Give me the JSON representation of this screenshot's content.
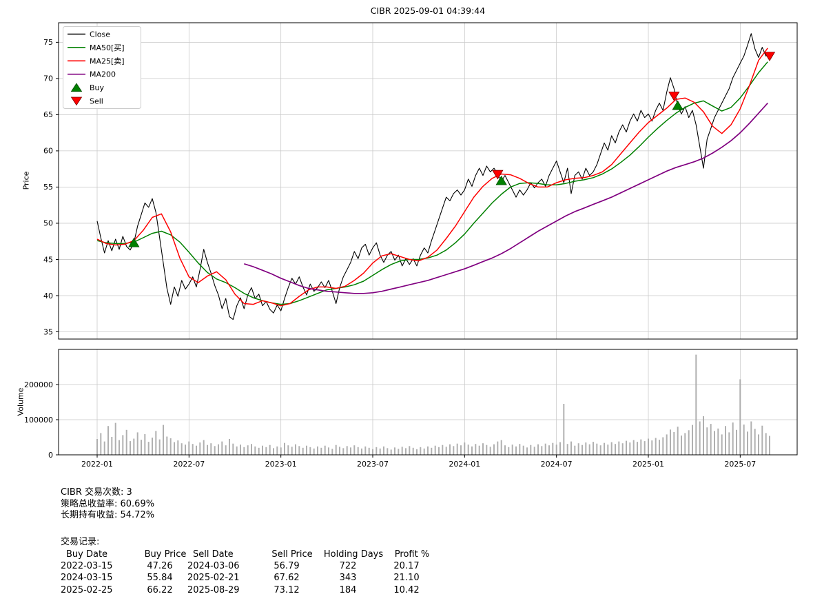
{
  "chart_data": {
    "type": "line",
    "title": "CIBR 2025-09-01 04:39:44",
    "xlim": [
      2021.79,
      2025.81
    ],
    "xticks": [
      {
        "value": 2022.0,
        "label": "2022-01"
      },
      {
        "value": 2022.5,
        "label": "2022-07"
      },
      {
        "value": 2023.0,
        "label": "2023-01"
      },
      {
        "value": 2023.5,
        "label": "2023-07"
      },
      {
        "value": 2024.0,
        "label": "2024-01"
      },
      {
        "value": 2024.5,
        "label": "2024-07"
      },
      {
        "value": 2025.0,
        "label": "2025-01"
      },
      {
        "value": 2025.5,
        "label": "2025-07"
      }
    ],
    "price_panel": {
      "ylabel": "Price",
      "ylim": [
        34,
        77.7
      ],
      "yticks": [
        35,
        40,
        45,
        50,
        55,
        60,
        65,
        70,
        75
      ],
      "grid": true,
      "series": [
        {
          "name": "Close",
          "color": "#000000",
          "width": 1.1,
          "x_start": 2022.0,
          "x_step": 0.02,
          "values": [
            50.3,
            48.0,
            45.9,
            47.6,
            46.2,
            47.8,
            46.4,
            48.2,
            46.8,
            46.3,
            47.3,
            49.6,
            51.2,
            52.8,
            52.2,
            53.4,
            51.5,
            48.0,
            44.5,
            41.0,
            38.8,
            41.2,
            39.9,
            42.1,
            40.9,
            41.6,
            42.6,
            41.2,
            43.6,
            46.4,
            44.6,
            43.1,
            41.4,
            40.1,
            38.2,
            39.6,
            37.1,
            36.7,
            38.6,
            39.7,
            38.2,
            40.1,
            41.1,
            39.6,
            40.2,
            38.6,
            39.2,
            38.1,
            37.6,
            38.7,
            37.9,
            39.6,
            41.1,
            42.4,
            41.6,
            42.6,
            41.2,
            40.1,
            41.6,
            40.6,
            41.1,
            41.9,
            41.1,
            42.1,
            40.6,
            38.9,
            41.1,
            42.6,
            43.6,
            44.6,
            46.1,
            45.1,
            46.6,
            47.1,
            45.6,
            46.6,
            47.3,
            45.6,
            44.6,
            45.6,
            46.1,
            44.9,
            45.6,
            44.1,
            45.1,
            44.3,
            45.1,
            44.1,
            45.6,
            46.6,
            45.9,
            47.6,
            49.1,
            50.6,
            52.1,
            53.6,
            53.1,
            54.1,
            54.6,
            53.9,
            54.6,
            56.1,
            55.1,
            56.6,
            57.6,
            56.6,
            57.9,
            57.1,
            57.6,
            56.8,
            55.8,
            56.6,
            55.6,
            54.6,
            53.6,
            54.6,
            53.9,
            54.6,
            55.6,
            54.9,
            55.6,
            56.1,
            55.1,
            56.6,
            57.6,
            58.6,
            57.1,
            55.6,
            57.6,
            54.1,
            56.6,
            57.1,
            56.1,
            57.6,
            56.6,
            57.1,
            58.1,
            59.6,
            61.1,
            60.1,
            62.1,
            61.1,
            62.6,
            63.6,
            62.6,
            64.1,
            65.1,
            64.1,
            65.6,
            64.6,
            65.1,
            64.1,
            65.6,
            66.6,
            65.6,
            68.1,
            70.1,
            68.6,
            66.2,
            65.1,
            66.1,
            64.6,
            65.6,
            63.6,
            60.6,
            57.6,
            61.6,
            63.1,
            64.6,
            65.6,
            66.6,
            67.6,
            68.6,
            70.1,
            71.1,
            72.1,
            73.1,
            74.6,
            76.2,
            74.1,
            72.9,
            74.3,
            73.1,
            73.4
          ]
        },
        {
          "name": "MA50[买]",
          "color": "#008000",
          "width": 1.5,
          "x_start": 2022.0,
          "x_step": 0.05,
          "values": [
            47.6,
            47.3,
            47.2,
            47.2,
            47.4,
            48.0,
            48.6,
            48.9,
            48.4,
            47.4,
            46.0,
            44.5,
            43.2,
            42.3,
            41.8,
            41.1,
            40.3,
            39.7,
            39.3,
            39.0,
            38.8,
            38.9,
            39.3,
            39.8,
            40.3,
            40.8,
            41.0,
            41.2,
            41.5,
            42.0,
            42.8,
            43.6,
            44.3,
            44.8,
            45.0,
            45.0,
            45.2,
            45.6,
            46.3,
            47.3,
            48.5,
            50.0,
            51.4,
            52.8,
            54.0,
            55.0,
            55.5,
            55.6,
            55.5,
            55.3,
            55.3,
            55.5,
            55.8,
            56.0,
            56.3,
            56.8,
            57.5,
            58.4,
            59.4,
            60.6,
            61.9,
            63.1,
            64.2,
            65.2,
            66.0,
            66.6,
            66.9,
            66.2,
            65.5,
            66.0,
            67.3,
            69.0,
            70.8,
            72.3
          ]
        },
        {
          "name": "MA25[卖]",
          "color": "#ff0000",
          "width": 1.5,
          "x_start": 2022.0,
          "x_step": 0.05,
          "values": [
            47.8,
            47.2,
            47.0,
            47.1,
            47.6,
            49.0,
            50.8,
            51.3,
            48.8,
            45.2,
            42.6,
            41.8,
            42.7,
            43.3,
            42.2,
            40.2,
            38.9,
            38.8,
            39.3,
            39.0,
            38.6,
            38.9,
            39.9,
            40.8,
            41.2,
            41.2,
            41.0,
            41.3,
            42.1,
            43.1,
            44.5,
            45.5,
            45.8,
            45.4,
            45.0,
            44.8,
            45.3,
            46.3,
            47.9,
            49.6,
            51.6,
            53.6,
            55.1,
            56.2,
            56.8,
            56.7,
            56.2,
            55.5,
            55.0,
            55.0,
            55.6,
            56.0,
            56.2,
            56.3,
            56.6,
            57.1,
            58.1,
            59.6,
            61.1,
            62.6,
            63.9,
            64.9,
            65.9,
            67.1,
            67.3,
            66.7,
            65.4,
            63.4,
            62.4,
            63.6,
            65.8,
            69.0,
            72.5,
            74.2
          ]
        },
        {
          "name": "MA200",
          "color": "#800080",
          "width": 1.7,
          "x_start": 2022.8,
          "x_step": 0.05,
          "values": [
            44.4,
            44.0,
            43.5,
            43.0,
            42.4,
            41.9,
            41.4,
            41.0,
            40.8,
            40.6,
            40.5,
            40.4,
            40.3,
            40.3,
            40.4,
            40.6,
            40.9,
            41.2,
            41.5,
            41.8,
            42.1,
            42.5,
            42.9,
            43.3,
            43.7,
            44.2,
            44.7,
            45.2,
            45.8,
            46.5,
            47.3,
            48.1,
            48.9,
            49.6,
            50.3,
            51.0,
            51.6,
            52.1,
            52.6,
            53.1,
            53.6,
            54.2,
            54.8,
            55.4,
            56.0,
            56.6,
            57.2,
            57.7,
            58.1,
            58.5,
            59.0,
            59.7,
            60.5,
            61.4,
            62.5,
            63.8,
            65.2,
            66.6
          ]
        }
      ],
      "markers": {
        "buy": {
          "label": "Buy",
          "color": "#008000",
          "points": [
            {
              "x": 2022.2,
              "y": 47.26
            },
            {
              "x": 2024.2,
              "y": 55.84
            },
            {
              "x": 2025.16,
              "y": 66.22
            }
          ]
        },
        "sell": {
          "label": "Sell",
          "color": "#ff0000",
          "points": [
            {
              "x": 2024.18,
              "y": 56.79
            },
            {
              "x": 2025.14,
              "y": 67.62
            },
            {
              "x": 2025.66,
              "y": 73.12
            }
          ]
        }
      },
      "legend": {
        "position": "upper-left",
        "items": [
          {
            "label": "Close",
            "color": "#000000",
            "type": "line"
          },
          {
            "label": "MA50[买]",
            "color": "#008000",
            "type": "line"
          },
          {
            "label": "MA25[卖]",
            "color": "#ff0000",
            "type": "line"
          },
          {
            "label": "MA200",
            "color": "#800080",
            "type": "line"
          },
          {
            "label": "Buy",
            "color": "#008000",
            "type": "triangle-up"
          },
          {
            "label": "Sell",
            "color": "#ff0000",
            "type": "triangle-down"
          }
        ]
      }
    },
    "volume_panel": {
      "ylabel": "Volume",
      "ylim": [
        0,
        300000
      ],
      "yticks": [
        0,
        100000,
        200000
      ],
      "grid": true,
      "bars": {
        "color": "#a8a8a8",
        "x_start": 2022.0,
        "x_step": 0.02,
        "values": [
          45000,
          62000,
          38000,
          82000,
          51000,
          91000,
          42000,
          56000,
          71000,
          39000,
          46000,
          64000,
          43000,
          59000,
          37000,
          49000,
          68000,
          44000,
          85000,
          52000,
          47000,
          36000,
          41000,
          33000,
          29000,
          38000,
          31000,
          26000,
          35000,
          42000,
          28000,
          33000,
          25000,
          30000,
          38000,
          27000,
          45000,
          32000,
          24000,
          29000,
          22000,
          27000,
          31000,
          24000,
          20000,
          26000,
          22000,
          28000,
          19000,
          24000,
          21000,
          34000,
          27000,
          23000,
          30000,
          25000,
          20000,
          26000,
          22000,
          18000,
          24000,
          20000,
          26000,
          21000,
          17000,
          28000,
          23000,
          19000,
          25000,
          21000,
          27000,
          22000,
          18000,
          24000,
          20000,
          16000,
          22000,
          18000,
          24000,
          19000,
          15000,
          21000,
          17000,
          23000,
          19000,
          25000,
          20000,
          16000,
          22000,
          18000,
          24000,
          20000,
          26000,
          22000,
          28000,
          23000,
          30000,
          25000,
          32000,
          27000,
          35000,
          29000,
          24000,
          31000,
          26000,
          33000,
          28000,
          23000,
          30000,
          38000,
          42000,
          27000,
          22000,
          29000,
          24000,
          31000,
          26000,
          21000,
          28000,
          23000,
          30000,
          25000,
          32000,
          27000,
          34000,
          29000,
          36000,
          145000,
          31000,
          38000,
          26000,
          33000,
          28000,
          35000,
          30000,
          37000,
          32000,
          27000,
          34000,
          29000,
          36000,
          31000,
          38000,
          33000,
          40000,
          35000,
          42000,
          37000,
          44000,
          39000,
          46000,
          41000,
          48000,
          43000,
          50000,
          58000,
          72000,
          65000,
          80000,
          55000,
          62000,
          70000,
          85000,
          285000,
          95000,
          110000,
          78000,
          88000,
          68000,
          75000,
          58000,
          82000,
          64000,
          92000,
          71000,
          215000,
          86000,
          66000,
          95000,
          74000,
          58000,
          83000,
          62000,
          54000
        ]
      }
    }
  },
  "summary": {
    "trades_line": "CIBR 交易次数: 3",
    "strategy_return_line": "策略总收益率: 60.69%",
    "hold_return_line": "长期持有收益: 54.72%",
    "records_label": "交易记录:"
  },
  "trades": {
    "headers": [
      "Buy Date",
      "Buy Price",
      "Sell Date",
      "Sell Price",
      "Holding Days",
      "Profit %"
    ],
    "rows": [
      [
        "2022-03-15",
        "47.26",
        "2024-03-06",
        "56.79",
        "722",
        "20.17"
      ],
      [
        "2024-03-15",
        "55.84",
        "2025-02-21",
        "67.62",
        "343",
        "21.10"
      ],
      [
        "2025-02-25",
        "66.22",
        "2025-08-29",
        "73.12",
        "184",
        "10.42"
      ]
    ]
  }
}
